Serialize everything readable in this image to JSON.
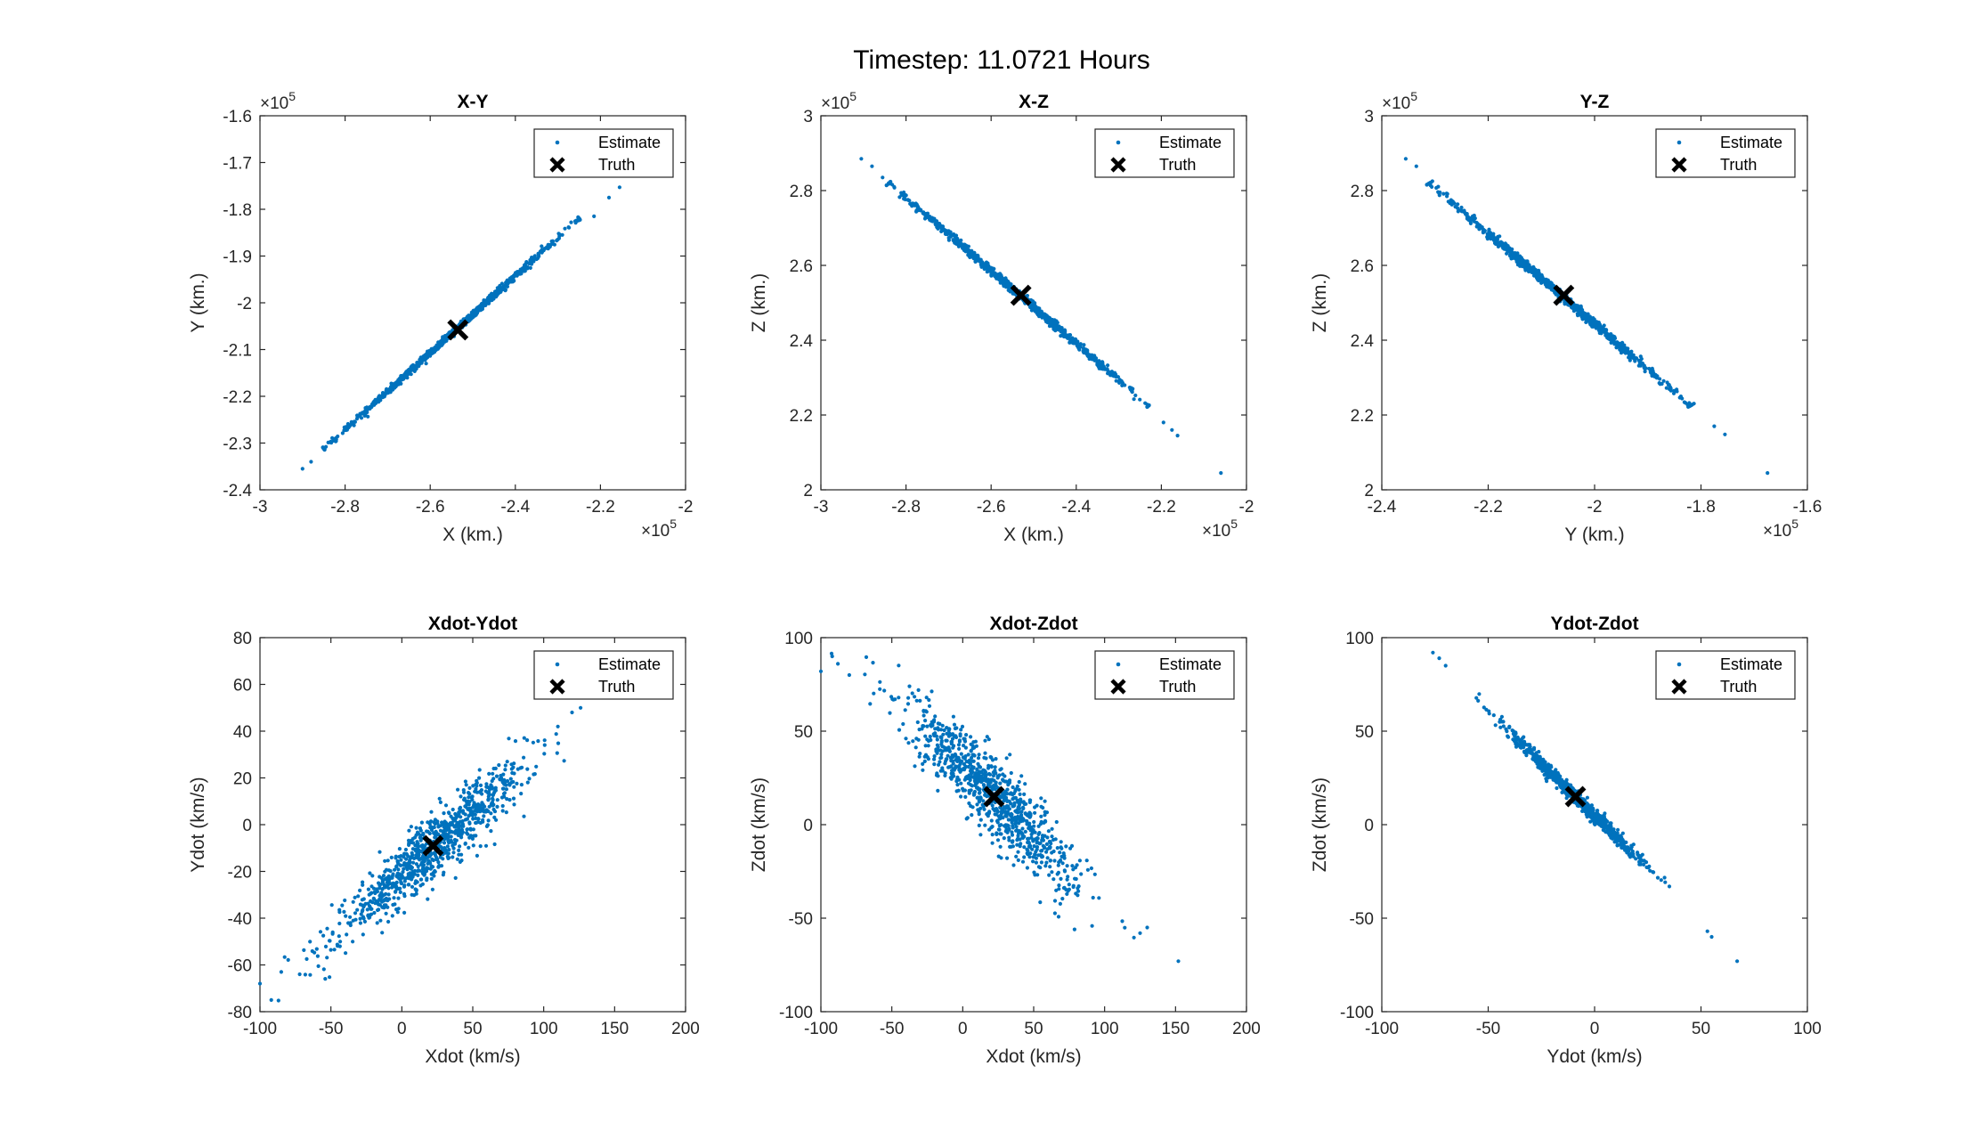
{
  "figure": {
    "title": "Timestep: 11.0721 Hours"
  },
  "legend": {
    "estimate": "Estimate",
    "truth": "Truth"
  },
  "colors": {
    "estimate": "#0072BD",
    "truth": "#000000",
    "axis": "#262626"
  },
  "chart_data": [
    {
      "type": "scatter",
      "title": "X-Y",
      "xlabel": "X (km.)",
      "ylabel": "Y (km.)",
      "xlim": [
        -300000,
        -200000
      ],
      "ylim": [
        -240000,
        -160000
      ],
      "xticks": [
        -300000,
        -280000,
        -260000,
        -240000,
        -220000,
        -200000
      ],
      "xtick_labels": [
        "-3",
        "-2.8",
        "-2.6",
        "-2.4",
        "-2.2",
        "-2"
      ],
      "yticks": [
        -240000,
        -230000,
        -220000,
        -210000,
        -200000,
        -190000,
        -180000,
        -170000,
        -160000
      ],
      "ytick_labels": [
        "-2.4",
        "-2.3",
        "-2.2",
        "-2.1",
        "-2",
        "-1.9",
        "-1.8",
        "-1.7",
        "-1.6"
      ],
      "x_exponent": "×10",
      "y_exponent": "×10",
      "exp_power": "5",
      "estimate": {
        "kind": "line",
        "from": [
          -290000,
          -235500
        ],
        "to": [
          -215000,
          -175000
        ],
        "dense_from": [
          -285000,
          -231200
        ],
        "dense_to": [
          -225000,
          -182000
        ],
        "width_spread": 300,
        "count": 900,
        "outliers": [
          [
            -290000,
            -235500
          ],
          [
            -288000,
            -234000
          ],
          [
            -284500,
            -230800
          ],
          [
            -221500,
            -181500
          ],
          [
            -218000,
            -177500
          ],
          [
            -215500,
            -175300
          ]
        ]
      },
      "truth": [
        -253500,
        -205800
      ]
    },
    {
      "type": "scatter",
      "title": "X-Z",
      "xlabel": "X (km.)",
      "ylabel": "Z (km.)",
      "xlim": [
        -300000,
        -200000
      ],
      "ylim": [
        200000,
        300000
      ],
      "xticks": [
        -300000,
        -280000,
        -260000,
        -240000,
        -220000,
        -200000
      ],
      "xtick_labels": [
        "-3",
        "-2.8",
        "-2.6",
        "-2.4",
        "-2.2",
        "-2"
      ],
      "yticks": [
        200000,
        220000,
        240000,
        260000,
        280000,
        300000
      ],
      "ytick_labels": [
        "2",
        "2.2",
        "2.4",
        "2.6",
        "2.8",
        "3"
      ],
      "x_exponent": "×10",
      "y_exponent": "×10",
      "exp_power": "5",
      "estimate": {
        "kind": "line",
        "from": [
          -290000,
          288500
        ],
        "to": [
          -216000,
          214500
        ],
        "dense_from": [
          -284000,
          282000
        ],
        "dense_to": [
          -223000,
          222500
        ],
        "width_spread": 400,
        "count": 900,
        "outliers": [
          [
            -290500,
            288500
          ],
          [
            -288000,
            286500
          ],
          [
            -285500,
            283500
          ],
          [
            -219500,
            218000
          ],
          [
            -217500,
            216000
          ],
          [
            -216200,
            214500
          ],
          [
            -206000,
            204500
          ]
        ]
      },
      "truth": [
        -253000,
        252000
      ]
    },
    {
      "type": "scatter",
      "title": "Y-Z",
      "xlabel": "Y (km.)",
      "ylabel": "Z (km.)",
      "xlim": [
        -240000,
        -160000
      ],
      "ylim": [
        200000,
        300000
      ],
      "xticks": [
        -240000,
        -220000,
        -200000,
        -180000,
        -160000
      ],
      "xtick_labels": [
        "-2.4",
        "-2.2",
        "-2",
        "-1.8",
        "-1.6"
      ],
      "yticks": [
        200000,
        220000,
        240000,
        260000,
        280000,
        300000
      ],
      "ytick_labels": [
        "2",
        "2.2",
        "2.4",
        "2.6",
        "2.8",
        "3"
      ],
      "x_exponent": "×10",
      "y_exponent": "×10",
      "exp_power": "5",
      "estimate": {
        "kind": "line",
        "from": [
          -235500,
          288500
        ],
        "to": [
          -175000,
          214500
        ],
        "dense_from": [
          -231000,
          282000
        ],
        "dense_to": [
          -182000,
          222500
        ],
        "width_spread": 400,
        "count": 900,
        "outliers": [
          [
            -235500,
            288500
          ],
          [
            -233500,
            286500
          ],
          [
            -230500,
            282500
          ],
          [
            -177500,
            217000
          ],
          [
            -175500,
            214800
          ],
          [
            -167500,
            204500
          ]
        ]
      },
      "truth": [
        -205800,
        252000
      ]
    },
    {
      "type": "scatter",
      "title": "Xdot-Ydot",
      "xlabel": "Xdot (km/s)",
      "ylabel": "Ydot (km/s)",
      "xlim": [
        -100,
        200
      ],
      "ylim": [
        -80,
        80
      ],
      "xticks": [
        -100,
        -50,
        0,
        50,
        100,
        150,
        200
      ],
      "xtick_labels": [
        "-100",
        "-50",
        "0",
        "50",
        "100",
        "150",
        "200"
      ],
      "yticks": [
        -80,
        -60,
        -40,
        -20,
        0,
        20,
        40,
        60,
        80
      ],
      "ytick_labels": [
        "-80",
        "-60",
        "-40",
        "-20",
        "0",
        "20",
        "40",
        "60",
        "80"
      ],
      "estimate": {
        "kind": "cloud",
        "center": [
          22,
          -10
        ],
        "direction": [
          1,
          0.545
        ],
        "main_sd": 38,
        "perp_sd": 5.5,
        "count": 900,
        "outliers": [
          [
            -100,
            -68
          ],
          [
            -92,
            -75
          ],
          [
            -85,
            -63
          ],
          [
            -72,
            -64
          ],
          [
            120,
            48
          ],
          [
            126,
            50
          ],
          [
            110,
            42
          ]
        ]
      },
      "truth": [
        22,
        -9
      ]
    },
    {
      "type": "scatter",
      "title": "Xdot-Zdot",
      "xlabel": "Xdot (km/s)",
      "ylabel": "Zdot (km/s)",
      "xlim": [
        -100,
        200
      ],
      "ylim": [
        -100,
        100
      ],
      "xticks": [
        -100,
        -50,
        0,
        50,
        100,
        150,
        200
      ],
      "xtick_labels": [
        "-100",
        "-50",
        "0",
        "50",
        "100",
        "150",
        "200"
      ],
      "yticks": [
        -100,
        -50,
        0,
        50,
        100
      ],
      "ytick_labels": [
        "-100",
        "-50",
        "0",
        "50",
        "100"
      ],
      "estimate": {
        "kind": "cloud",
        "center": [
          22,
          15
        ],
        "direction": [
          1,
          -0.8
        ],
        "main_sd": 38,
        "perp_sd": 8,
        "count": 900,
        "outliers": [
          [
            -100,
            82
          ],
          [
            -92,
            90
          ],
          [
            -88,
            86
          ],
          [
            -80,
            80
          ],
          [
            130,
            -55
          ],
          [
            125,
            -58
          ],
          [
            152,
            -73
          ]
        ]
      },
      "truth": [
        22,
        15
      ]
    },
    {
      "type": "scatter",
      "title": "Ydot-Zdot",
      "xlabel": "Ydot (km/s)",
      "ylabel": "Zdot (km/s)",
      "xlim": [
        -100,
        100
      ],
      "ylim": [
        -100,
        100
      ],
      "xticks": [
        -100,
        -50,
        0,
        50,
        100
      ],
      "xtick_labels": [
        "-100",
        "-50",
        "0",
        "50",
        "100"
      ],
      "yticks": [
        -100,
        -50,
        0,
        50,
        100
      ],
      "ytick_labels": [
        "-100",
        "-50",
        "0",
        "50",
        "100"
      ],
      "estimate": {
        "kind": "cloud",
        "center": [
          -9,
          15
        ],
        "direction": [
          1,
          -1.12
        ],
        "main_sd": 22,
        "perp_sd": 1.3,
        "count": 900,
        "outliers": [
          [
            -76,
            92
          ],
          [
            -73,
            89
          ],
          [
            -70,
            85
          ],
          [
            53,
            -57
          ],
          [
            55,
            -60
          ],
          [
            67,
            -73
          ]
        ]
      },
      "truth": [
        -9,
        15
      ]
    }
  ]
}
